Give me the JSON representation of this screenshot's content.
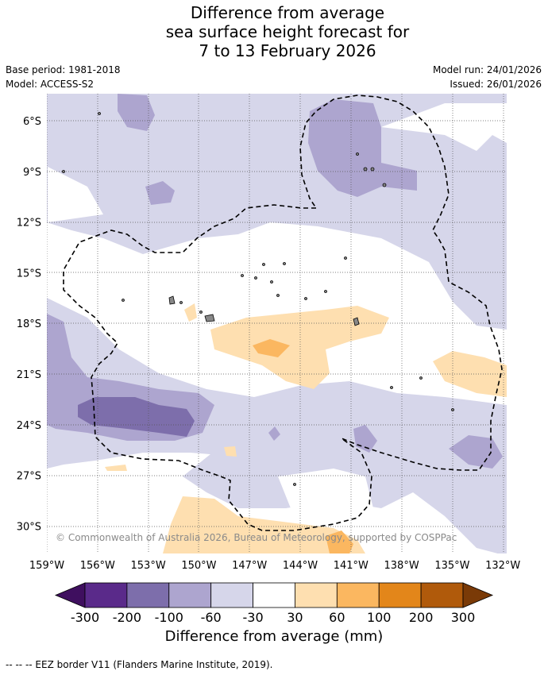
{
  "title": {
    "line1": "Difference from average",
    "line2": "sea surface height forecast for",
    "line3": "7 to 13 February 2026"
  },
  "meta": {
    "base_period": "Base period: 1981-2018",
    "model": "Model: ACCESS-S2",
    "model_run": "Model run: 24/01/2026",
    "issued": "Issued: 26/01/2026"
  },
  "axes": {
    "lat_labels": [
      "6°S",
      "9°S",
      "12°S",
      "15°S",
      "18°S",
      "21°S",
      "24°S",
      "27°S",
      "30°S"
    ],
    "lat_values": [
      -6,
      -9,
      -12,
      -15,
      -18,
      -21,
      -24,
      -27,
      -30
    ],
    "lon_labels": [
      "159°W",
      "156°W",
      "153°W",
      "150°W",
      "147°W",
      "144°W",
      "141°W",
      "138°W",
      "135°W",
      "132°W"
    ],
    "lon_values": [
      -159,
      -156,
      -153,
      -150,
      -147,
      -144,
      -141,
      -138,
      -135,
      -132
    ]
  },
  "copyright": "© Commonwealth of Australia 2026, Bureau of Meteorology, supported by COSPPac",
  "legend": {
    "title": "Difference from average (mm)",
    "ticks": [
      "-300",
      "-200",
      "-100",
      "-60",
      "-30",
      "30",
      "60",
      "100",
      "200",
      "300"
    ],
    "colors": [
      "#3f0f5f",
      "#5a2a8a",
      "#7d6eab",
      "#ada5cf",
      "#d6d6ea",
      "#ffffff",
      "#fedfb0",
      "#fbb760",
      "#e3861a",
      "#b05a0b",
      "#7a3a07"
    ]
  },
  "footnote": "-- -- -- EEZ border V11 (Flanders Marine Institute, 2019)."
}
